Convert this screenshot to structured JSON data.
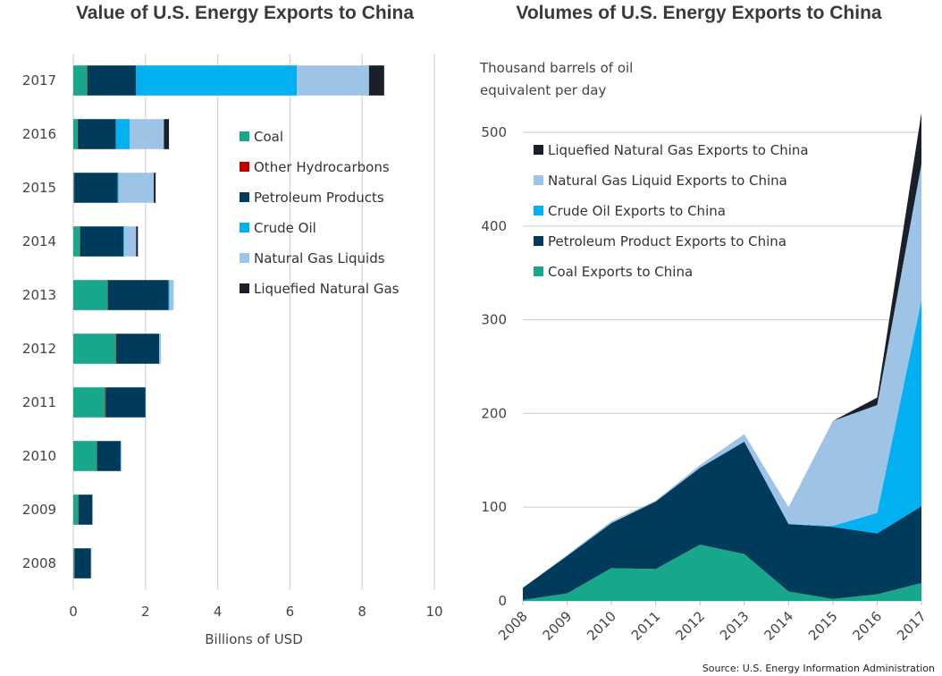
{
  "source": "Source: U.S. Energy Information Administration",
  "chart_data": [
    {
      "type": "bar",
      "orientation": "horizontal",
      "stacked": true,
      "title": "Value of U.S. Energy Exports to China",
      "xlabel": "Billions of USD",
      "ylabel": "",
      "xlim": [
        0,
        10
      ],
      "xticks": [
        "0",
        "2",
        "4",
        "6",
        "8",
        "10"
      ],
      "categories": [
        "2017",
        "2016",
        "2015",
        "2014",
        "2013",
        "2012",
        "2011",
        "2010",
        "2009",
        "2008"
      ],
      "legend_position": "center-right",
      "series": [
        {
          "name": "Coal",
          "color": "#17a88c",
          "values": [
            0.38,
            0.12,
            0.02,
            0.18,
            0.95,
            1.18,
            0.88,
            0.65,
            0.14,
            0.03
          ]
        },
        {
          "name": "Other Hydrocarbons",
          "color": "#c00000",
          "values": [
            0.01,
            0.01,
            0.01,
            0.01,
            0.01,
            0.02,
            0.02,
            0.01,
            0.01,
            0.01
          ]
        },
        {
          "name": "Petroleum Products",
          "color": "#003b5c",
          "values": [
            1.35,
            1.05,
            1.2,
            1.2,
            1.68,
            1.18,
            1.1,
            0.65,
            0.38,
            0.45
          ]
        },
        {
          "name": "Crude Oil",
          "color": "#00b0f0",
          "values": [
            4.45,
            0.38,
            0.02,
            0.02,
            0.02,
            0.0,
            0.0,
            0.0,
            0.0,
            0.0
          ]
        },
        {
          "name": "Natural Gas Liquids",
          "color": "#9dc3e6",
          "values": [
            2.0,
            0.95,
            0.98,
            0.33,
            0.12,
            0.05,
            0.01,
            0.03,
            0.0,
            0.01
          ]
        },
        {
          "name": "Liquefied Natural Gas",
          "color": "#1b1f2a",
          "values": [
            0.42,
            0.14,
            0.05,
            0.05,
            0.0,
            0.0,
            0.0,
            0.0,
            0.0,
            0.0
          ]
        }
      ]
    },
    {
      "type": "area",
      "stacked": true,
      "title": "Volumes of U.S. Energy Exports to China",
      "xlabel": "",
      "ylabel": "Thousand barrels of oil equivalent per day",
      "ylabel_lines": [
        "Thousand barrels of oil",
        "equivalent per day"
      ],
      "ylim": [
        0,
        500
      ],
      "yticks": [
        "0",
        "100",
        "200",
        "300",
        "400",
        "500"
      ],
      "x": [
        "2008",
        "2009",
        "2010",
        "2011",
        "2012",
        "2013",
        "2014",
        "2015",
        "2016",
        "2017"
      ],
      "legend_position": "top-left",
      "legend_order": [
        "Liquefied Natural Gas Exports to China",
        "Natural Gas Liquid Exports to China",
        "Crude Oil Exports to China",
        "Petroleum Product Exports to China",
        "Coal Exports to China"
      ],
      "series": [
        {
          "name": "Coal Exports to China",
          "color": "#17a88c",
          "values": [
            1,
            8,
            35,
            34,
            60,
            50,
            10,
            2,
            7,
            19
          ]
        },
        {
          "name": "Petroleum Product Exports to China",
          "color": "#003b5c",
          "values": [
            13,
            40,
            48,
            72,
            82,
            120,
            72,
            77,
            65,
            82
          ]
        },
        {
          "name": "Crude Oil Exports to China",
          "color": "#00b0f0",
          "values": [
            0,
            0,
            0,
            0,
            0,
            0,
            0,
            1,
            22,
            220
          ]
        },
        {
          "name": "Natural Gas Liquid Exports to China",
          "color": "#9dc3e6",
          "values": [
            0,
            1,
            2,
            1,
            3,
            8,
            18,
            112,
            115,
            145
          ]
        },
        {
          "name": "Liquefied Natural Gas Exports to China",
          "color": "#1b1f2a",
          "values": [
            0,
            0,
            0,
            0,
            0,
            0,
            0,
            0,
            8,
            55
          ]
        }
      ]
    }
  ]
}
